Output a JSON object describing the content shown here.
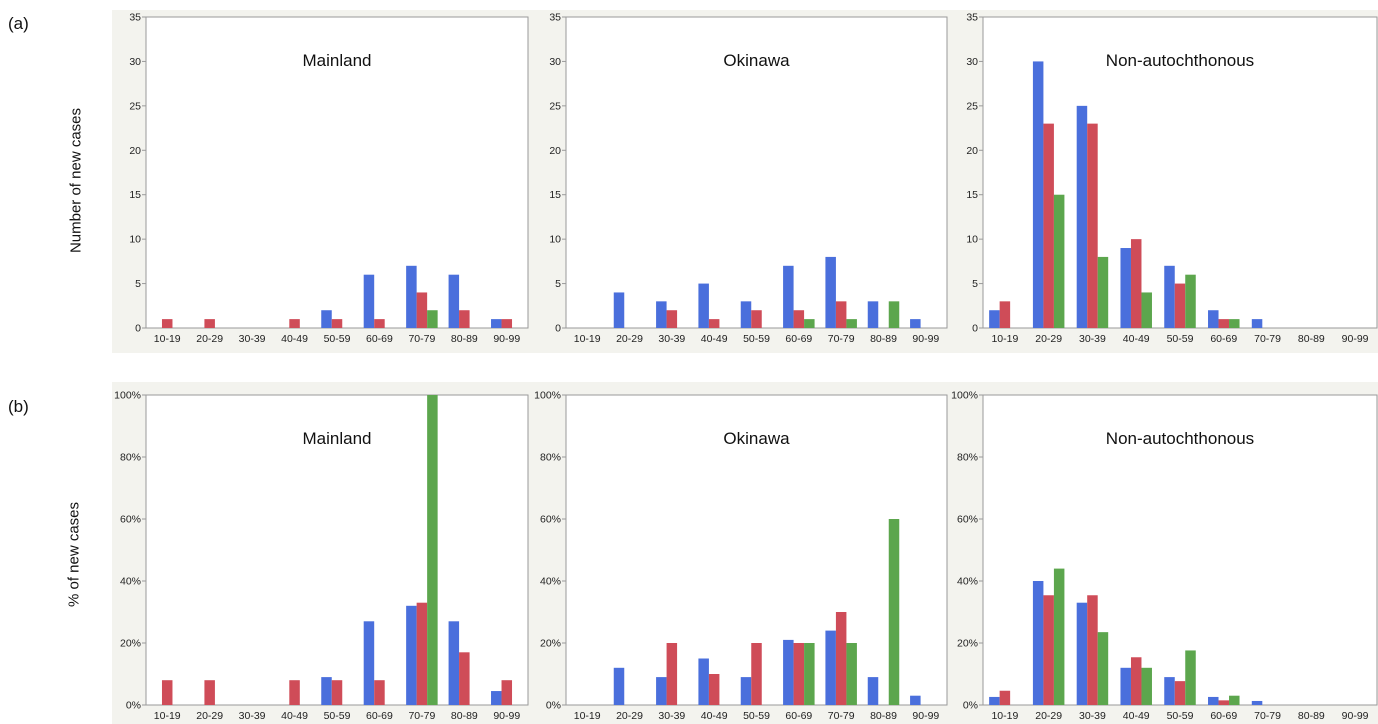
{
  "figure": {
    "row_a_label": "(a)",
    "row_b_label": "(b)",
    "row_a_ylabel": "Number of new cases",
    "row_b_ylabel": "% of new cases"
  },
  "colors": {
    "blue": "#4a6fdc",
    "red": "#cf4c58",
    "green": "#5ca64d",
    "panel_bg": "#f3f3ee",
    "plot_bg": "#ffffff",
    "axis": "#9a9a9a"
  },
  "chart_data": [
    {
      "type": "bar",
      "panel": "a",
      "title": "Mainland",
      "categories": [
        "10-19",
        "20-29",
        "30-39",
        "40-49",
        "50-59",
        "60-69",
        "70-79",
        "80-89",
        "90-99"
      ],
      "ylim": [
        0,
        35
      ],
      "yticks": [
        "0",
        "5",
        "10",
        "15",
        "20",
        "25",
        "30",
        "35"
      ],
      "series": [
        {
          "color": "blue",
          "values": [
            0,
            0,
            0,
            0,
            2,
            6,
            7,
            6,
            1
          ]
        },
        {
          "color": "red",
          "values": [
            1,
            1,
            0,
            1,
            1,
            1,
            4,
            2,
            1
          ]
        },
        {
          "color": "green",
          "values": [
            0,
            0,
            0,
            0,
            0,
            0,
            2,
            0,
            0
          ]
        }
      ]
    },
    {
      "type": "bar",
      "panel": "a",
      "title": "Okinawa",
      "categories": [
        "10-19",
        "20-29",
        "30-39",
        "40-49",
        "50-59",
        "60-69",
        "70-79",
        "80-89",
        "90-99"
      ],
      "ylim": [
        0,
        35
      ],
      "yticks": [
        "0",
        "5",
        "10",
        "15",
        "20",
        "25",
        "30",
        "35"
      ],
      "series": [
        {
          "color": "blue",
          "values": [
            0,
            4,
            3,
            5,
            3,
            7,
            8,
            3,
            1
          ]
        },
        {
          "color": "red",
          "values": [
            0,
            0,
            2,
            1,
            2,
            2,
            3,
            0,
            0
          ]
        },
        {
          "color": "green",
          "values": [
            0,
            0,
            0,
            0,
            0,
            1,
            1,
            3,
            0
          ]
        }
      ]
    },
    {
      "type": "bar",
      "panel": "a",
      "title": "Non-autochthonous",
      "categories": [
        "10-19",
        "20-29",
        "30-39",
        "40-49",
        "50-59",
        "60-69",
        "70-79",
        "80-89",
        "90-99"
      ],
      "ylim": [
        0,
        35
      ],
      "yticks": [
        "0",
        "5",
        "10",
        "15",
        "20",
        "25",
        "30",
        "35"
      ],
      "series": [
        {
          "color": "blue",
          "values": [
            2,
            30,
            25,
            9,
            7,
            2,
            1,
            0,
            0
          ]
        },
        {
          "color": "red",
          "values": [
            3,
            23,
            23,
            10,
            5,
            1,
            0,
            0,
            0
          ]
        },
        {
          "color": "green",
          "values": [
            0,
            15,
            8,
            4,
            6,
            1,
            0,
            0,
            0
          ]
        }
      ]
    },
    {
      "type": "bar",
      "panel": "b",
      "title": "Mainland",
      "categories": [
        "10-19",
        "20-29",
        "30-39",
        "40-49",
        "50-59",
        "60-69",
        "70-79",
        "80-89",
        "90-99"
      ],
      "ylim": [
        0,
        100
      ],
      "yticks": [
        "0%",
        "20%",
        "40%",
        "60%",
        "80%",
        "100%"
      ],
      "series": [
        {
          "color": "blue",
          "values": [
            0,
            0,
            0,
            0,
            9,
            27,
            32,
            27,
            4.5
          ]
        },
        {
          "color": "red",
          "values": [
            8,
            8,
            0,
            8,
            8,
            8,
            33,
            17,
            8
          ]
        },
        {
          "color": "green",
          "values": [
            0,
            0,
            0,
            0,
            0,
            0,
            100,
            0,
            0
          ]
        }
      ]
    },
    {
      "type": "bar",
      "panel": "b",
      "title": "Okinawa",
      "categories": [
        "10-19",
        "20-29",
        "30-39",
        "40-49",
        "50-59",
        "60-69",
        "70-79",
        "80-89",
        "90-99"
      ],
      "ylim": [
        0,
        100
      ],
      "yticks": [
        "0%",
        "20%",
        "40%",
        "60%",
        "80%",
        "100%"
      ],
      "series": [
        {
          "color": "blue",
          "values": [
            0,
            12,
            9,
            15,
            9,
            21,
            24,
            9,
            3
          ]
        },
        {
          "color": "red",
          "values": [
            0,
            0,
            20,
            10,
            20,
            20,
            30,
            0,
            0
          ]
        },
        {
          "color": "green",
          "values": [
            0,
            0,
            0,
            0,
            0,
            20,
            20,
            60,
            0
          ]
        }
      ]
    },
    {
      "type": "bar",
      "panel": "b",
      "title": "Non-autochthonous",
      "categories": [
        "10-19",
        "20-29",
        "30-39",
        "40-49",
        "50-59",
        "60-69",
        "70-79",
        "80-89",
        "90-99"
      ],
      "ylim": [
        0,
        100
      ],
      "yticks": [
        "0%",
        "20%",
        "40%",
        "60%",
        "80%",
        "100%"
      ],
      "series": [
        {
          "color": "blue",
          "values": [
            2.6,
            40,
            33,
            12,
            9,
            2.6,
            1.3,
            0,
            0
          ]
        },
        {
          "color": "red",
          "values": [
            4.6,
            35.4,
            35.4,
            15.4,
            7.7,
            1.5,
            0,
            0,
            0
          ]
        },
        {
          "color": "green",
          "values": [
            0,
            44,
            23.5,
            12,
            17.6,
            3,
            0,
            0,
            0
          ]
        }
      ]
    }
  ]
}
